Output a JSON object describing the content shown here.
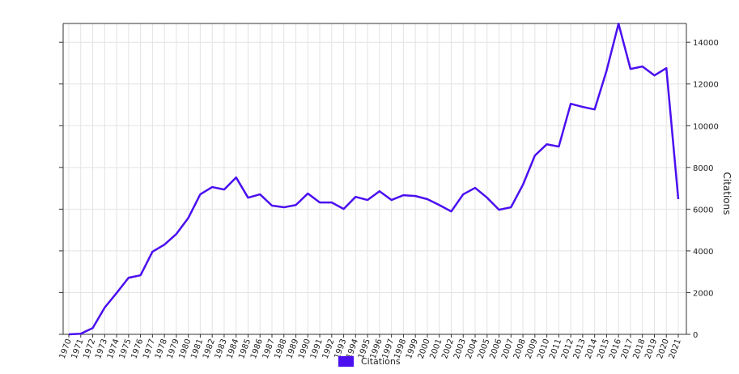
{
  "chart_data": {
    "type": "line",
    "categories": [
      "1970",
      "1971",
      "1972",
      "1973",
      "1974",
      "1975",
      "1976",
      "1977",
      "1978",
      "1979",
      "1980",
      "1981",
      "1982",
      "1983",
      "1984",
      "1985",
      "1986",
      "1987",
      "1988",
      "1989",
      "1990",
      "1991",
      "1992",
      "1993",
      "1994",
      "1995",
      "1996",
      "1997",
      "1998",
      "1999",
      "2000",
      "2001",
      "2002",
      "2003",
      "2004",
      "2005",
      "2006",
      "2007",
      "2008",
      "2009",
      "2010",
      "2011",
      "2012",
      "2013",
      "2014",
      "2015",
      "2016",
      "2017",
      "2018",
      "2019",
      "2020",
      "2021"
    ],
    "series": [
      {
        "name": "Citations",
        "color": "#4b0ff0",
        "values": [
          0,
          30,
          300,
          1280,
          1980,
          2710,
          2830,
          3960,
          4300,
          4810,
          5580,
          6710,
          7060,
          6940,
          7520,
          6550,
          6710,
          6170,
          6090,
          6200,
          6750,
          6320,
          6320,
          6010,
          6590,
          6440,
          6860,
          6440,
          6670,
          6630,
          6480,
          6200,
          5890,
          6710,
          7020,
          6550,
          5970,
          6090,
          7170,
          8570,
          9110,
          9000,
          11050,
          10900,
          10780,
          12640,
          14890,
          12720,
          12840,
          12410,
          12760,
          6480
        ]
      }
    ],
    "y_label": "Citations",
    "ylim": [
      0,
      14900
    ],
    "yticks": [
      0,
      2000,
      4000,
      6000,
      8000,
      10000,
      12000,
      14000
    ],
    "grid": true
  }
}
